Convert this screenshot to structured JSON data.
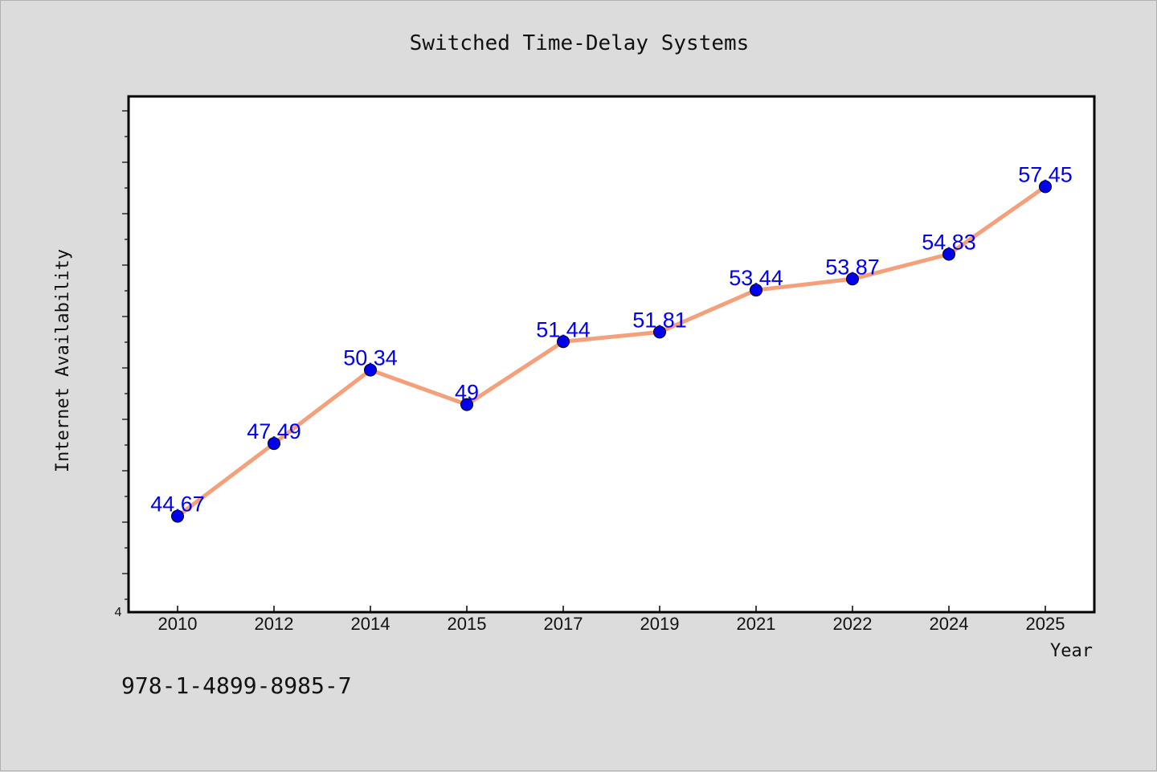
{
  "chart_data": {
    "type": "line",
    "title": "Switched Time-Delay Systems",
    "xlabel": "Year",
    "ylabel": "Internet Availability",
    "categories": [
      "2010",
      "2012",
      "2014",
      "2015",
      "2017",
      "2019",
      "2021",
      "2022",
      "2024",
      "2025"
    ],
    "series": [
      {
        "values": [
          44.67,
          47.49,
          50.34,
          49,
          51.44,
          51.81,
          53.44,
          53.87,
          54.83,
          57.45
        ],
        "labels": [
          "44.67",
          "47.49",
          "50.34",
          "49",
          "51.44",
          "51.81",
          "53.44",
          "53.87",
          "54.83",
          "57.45"
        ],
        "line_color": "#f4a07a",
        "marker_color": "#0000ee",
        "label_color": "#0000ee"
      }
    ],
    "ylim": [
      40.95,
      60.95
    ],
    "y_tick_labels": [
      "4"
    ],
    "grid": false,
    "legend": "none"
  },
  "footer_text": "978-1-4899-8985-7"
}
